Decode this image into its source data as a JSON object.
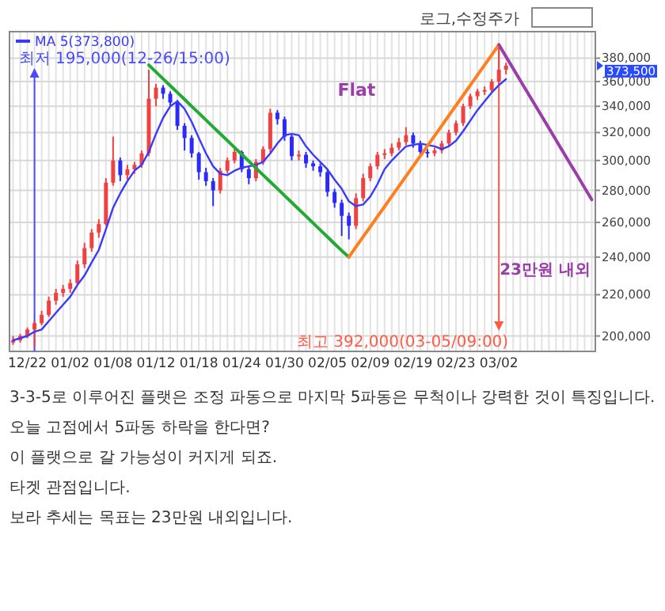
{
  "chart_data": {
    "type": "candlestick",
    "log": true,
    "grid": true,
    "legend": "top left",
    "categories": [
      null,
      null,
      "12/22",
      null,
      null,
      null,
      null,
      null,
      "01/02",
      null,
      null,
      null,
      null,
      null,
      "01/08",
      null,
      null,
      null,
      null,
      null,
      "01/12",
      null,
      null,
      null,
      null,
      null,
      "01/18",
      null,
      null,
      null,
      null,
      null,
      "01/24",
      null,
      null,
      null,
      null,
      null,
      "01/30",
      null,
      null,
      null,
      null,
      null,
      "02/05",
      null,
      null,
      null,
      null,
      null,
      "02/09",
      null,
      null,
      null,
      null,
      null,
      "02/19",
      null,
      null,
      null,
      null,
      null,
      "02/23",
      null,
      null,
      null,
      null,
      null,
      "03/02",
      null,
      null,
      null,
      null,
      null,
      null,
      null,
      null,
      null,
      null,
      null,
      null,
      null
    ],
    "ohlc": [
      [
        197000,
        200000,
        196000,
        198000
      ],
      [
        198000,
        201000,
        197000,
        200000
      ],
      [
        200000,
        204000,
        199000,
        203000
      ],
      [
        203000,
        207000,
        195000,
        206000
      ],
      [
        206000,
        212000,
        205000,
        210000
      ],
      [
        210000,
        219000,
        209000,
        217000
      ],
      [
        217000,
        223000,
        215000,
        221000
      ],
      [
        221000,
        225000,
        219000,
        223000
      ],
      [
        223000,
        228000,
        221000,
        226000
      ],
      [
        226000,
        238000,
        225000,
        236000
      ],
      [
        236000,
        248000,
        234000,
        245000
      ],
      [
        245000,
        256000,
        243000,
        254000
      ],
      [
        254000,
        262000,
        251000,
        259000
      ],
      [
        259000,
        288000,
        258000,
        285000
      ],
      [
        285000,
        317000,
        283000,
        300000
      ],
      [
        300000,
        302000,
        286000,
        290000
      ],
      [
        290000,
        297000,
        287000,
        294000
      ],
      [
        294000,
        299000,
        291000,
        297000
      ],
      [
        297000,
        307000,
        295000,
        305000
      ],
      [
        305000,
        370000,
        303000,
        346000
      ],
      [
        346000,
        358000,
        340000,
        355000
      ],
      [
        355000,
        357000,
        346000,
        350000
      ],
      [
        350000,
        352000,
        340000,
        343000
      ],
      [
        343000,
        345000,
        322000,
        325000
      ],
      [
        325000,
        327000,
        307000,
        316000
      ],
      [
        316000,
        318000,
        302000,
        305000
      ],
      [
        305000,
        306000,
        287000,
        292000
      ],
      [
        292000,
        295000,
        283000,
        286000
      ],
      [
        286000,
        288000,
        270000,
        280000
      ],
      [
        280000,
        295000,
        278000,
        293000
      ],
      [
        293000,
        302000,
        291000,
        300000
      ],
      [
        300000,
        310000,
        298000,
        306000
      ],
      [
        306000,
        307000,
        292000,
        294000
      ],
      [
        294000,
        296000,
        284000,
        288000
      ],
      [
        288000,
        301000,
        286000,
        299000
      ],
      [
        299000,
        310000,
        297000,
        308000
      ],
      [
        308000,
        338000,
        306000,
        335000
      ],
      [
        335000,
        337000,
        326000,
        330000
      ],
      [
        330000,
        332000,
        314000,
        317000
      ],
      [
        317000,
        319000,
        300000,
        303000
      ],
      [
        303000,
        307000,
        300000,
        304000
      ],
      [
        304000,
        306000,
        295000,
        298000
      ],
      [
        298000,
        300000,
        293000,
        296000
      ],
      [
        296000,
        298000,
        289000,
        292000
      ],
      [
        292000,
        294000,
        276000,
        279000
      ],
      [
        279000,
        281000,
        269000,
        272000
      ],
      [
        272000,
        274000,
        252000,
        264000
      ],
      [
        264000,
        266000,
        250000,
        258000
      ],
      [
        258000,
        278000,
        256000,
        275000
      ],
      [
        275000,
        291000,
        273000,
        288000
      ],
      [
        288000,
        298000,
        286000,
        296000
      ],
      [
        296000,
        306000,
        294000,
        304000
      ],
      [
        304000,
        308000,
        301000,
        305000
      ],
      [
        305000,
        312000,
        303000,
        309000
      ],
      [
        309000,
        316000,
        307000,
        313000
      ],
      [
        313000,
        324000,
        311000,
        318000
      ],
      [
        318000,
        320000,
        309000,
        312000
      ],
      [
        312000,
        314000,
        303000,
        306000
      ],
      [
        306000,
        308000,
        302000,
        305000
      ],
      [
        305000,
        309000,
        303000,
        307000
      ],
      [
        307000,
        314000,
        305000,
        312000
      ],
      [
        312000,
        322000,
        310000,
        320000
      ],
      [
        320000,
        329000,
        318000,
        327000
      ],
      [
        327000,
        342000,
        325000,
        340000
      ],
      [
        340000,
        350000,
        338000,
        348000
      ],
      [
        348000,
        354000,
        345000,
        352000
      ],
      [
        352000,
        356000,
        349000,
        353000
      ],
      [
        353000,
        362000,
        351000,
        360000
      ],
      [
        360000,
        392000,
        358000,
        370000
      ],
      [
        370000,
        376000,
        366000,
        373500
      ],
      null,
      null,
      null,
      null,
      null,
      null,
      null,
      null,
      null,
      null,
      null,
      null
    ],
    "series": [
      {
        "name": "MA 5(373,800)",
        "type": "line",
        "color": "#3a3aff",
        "values": [
          198000,
          199000,
          200000,
          202000,
          203000,
          207000,
          211000,
          215000,
          219000,
          225000,
          230000,
          237000,
          244000,
          256000,
          269000,
          278000,
          286000,
          293000,
          297000,
          306000,
          319000,
          331000,
          340000,
          344000,
          338000,
          328000,
          316000,
          305000,
          296000,
          291000,
          290000,
          293000,
          295000,
          296000,
          297000,
          299000,
          305000,
          312000,
          318000,
          319000,
          318000,
          310000,
          304000,
          299000,
          294000,
          287000,
          281000,
          273000,
          270000,
          271000,
          276000,
          284000,
          294000,
          300000,
          305000,
          310000,
          311000,
          312000,
          311000,
          310000,
          308000,
          310000,
          314000,
          321000,
          329000,
          337000,
          344000,
          351000,
          357000,
          362000,
          null,
          null,
          null,
          null,
          null,
          null,
          null,
          null,
          null,
          null,
          null,
          null
        ]
      },
      {
        "type": "line",
        "color": "#22aa33",
        "values": [
          null,
          null,
          null,
          null,
          null,
          null,
          null,
          null,
          null,
          null,
          null,
          null,
          null,
          null,
          null,
          null,
          null,
          null,
          null,
          374000,
          368100,
          362300,
          356600,
          351000,
          345500,
          340000,
          334700,
          329400,
          324200,
          319100,
          314100,
          309100,
          304300,
          299500,
          294800,
          290100,
          285600,
          281100,
          276600,
          272300,
          268000,
          263800,
          259600,
          255500,
          251500,
          247500,
          243600,
          240000,
          null,
          null,
          null,
          null,
          null,
          null,
          null,
          null,
          null,
          null,
          null,
          null,
          null,
          null,
          null,
          null,
          null,
          null,
          null,
          null,
          null,
          null,
          null,
          null,
          null,
          null,
          null,
          null,
          null,
          null,
          null,
          null,
          null,
          null
        ]
      },
      {
        "type": "line",
        "color": "#ff7f1e",
        "values": [
          null,
          null,
          null,
          null,
          null,
          null,
          null,
          null,
          null,
          null,
          null,
          null,
          null,
          null,
          null,
          null,
          null,
          null,
          null,
          null,
          null,
          null,
          null,
          null,
          null,
          null,
          null,
          null,
          null,
          null,
          null,
          null,
          null,
          null,
          null,
          null,
          null,
          null,
          null,
          null,
          null,
          null,
          null,
          null,
          null,
          null,
          null,
          240000,
          245700,
          251500,
          257400,
          263500,
          269700,
          276100,
          282600,
          289300,
          296100,
          303100,
          310300,
          317600,
          325100,
          332800,
          340700,
          348700,
          357000,
          365400,
          374100,
          382900,
          392000,
          null,
          null,
          null,
          null,
          null,
          null,
          null,
          null,
          null,
          null,
          null,
          null,
          null
        ]
      },
      {
        "type": "line",
        "color": "#9b3fa8",
        "values": [
          null,
          null,
          null,
          null,
          null,
          null,
          null,
          null,
          null,
          null,
          null,
          null,
          null,
          null,
          null,
          null,
          null,
          null,
          null,
          null,
          null,
          null,
          null,
          null,
          null,
          null,
          null,
          null,
          null,
          null,
          null,
          null,
          null,
          null,
          null,
          null,
          null,
          null,
          null,
          null,
          null,
          null,
          null,
          null,
          null,
          null,
          null,
          null,
          null,
          null,
          null,
          null,
          null,
          null,
          null,
          null,
          null,
          null,
          null,
          null,
          null,
          null,
          null,
          null,
          null,
          null,
          null,
          null,
          392000,
          381300,
          371000,
          360900,
          351100,
          341600,
          332300,
          323300,
          314500,
          305900,
          297600,
          289600,
          281700,
          274000
        ]
      }
    ],
    "ylim": [
      193000,
      404000
    ],
    "yticks": [
      {
        "value": 200000,
        "label": "200,000"
      },
      {
        "value": 220000,
        "label": "220,000"
      },
      {
        "value": 240000,
        "label": "240,000"
      },
      {
        "value": 260000,
        "label": "260,000"
      },
      {
        "value": 280000,
        "label": "280,000"
      },
      {
        "value": 300000,
        "label": "300,000"
      },
      {
        "value": 320000,
        "label": "320,000"
      },
      {
        "value": 340000,
        "label": "340,000"
      },
      {
        "value": 360000,
        "label": "360,000"
      },
      {
        "value": 380000,
        "label": "380,000"
      }
    ],
    "annotations": [
      "최저 195,000(12-26/15:00)",
      "최고 392,000(03-05/09:00)",
      "373,500",
      "Flat",
      "23만원 내외",
      "로그,수정주가",
      "3-3-5로 이루어진 플랫은 조정 파동으로 마지막 5파동은 무척이나 강력한 것이 특징입니다.",
      "오늘 고점에서 5파동 하락을 한다면?",
      "이 플랫으로 갈 가능성이 커지게 되죠.",
      "타겟 관점입니다.",
      "보라 추세는 목표는 23만원 내외입니다."
    ]
  }
}
